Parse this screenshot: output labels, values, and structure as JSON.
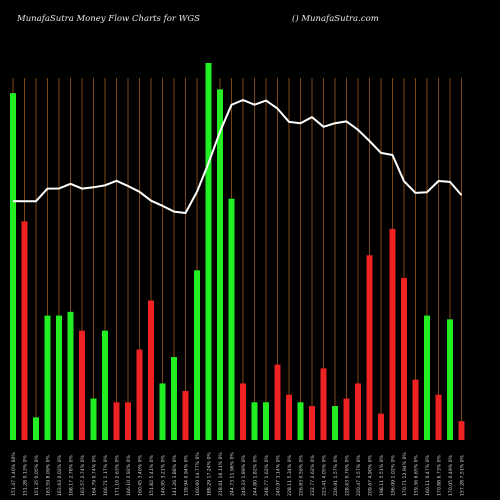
{
  "header": {
    "title": "MunafaSutra  Money Flow  Charts for WGS",
    "credit": "() MunafaSutra.com"
  },
  "colors": {
    "background": "#000000",
    "gridline": "#b5651d",
    "up": "#22ee22",
    "down": "#ee2222",
    "price_line": "#ffffff"
  },
  "chart_data": {
    "type": "bar",
    "title": "MunafaSutra  Money Flow  Charts for WGS",
    "grid": true,
    "categories": [
      "151.47 3.40% 60%",
      "151.28 0.13% 0%",
      "151.35 0.05% 0%",
      "163.59 8.09% 0%",
      "163.63 0.02% 0%",
      "168.17 2.78% 0%",
      "163.57 2.74% 0%",
      "164.79 0.74% 0%",
      "166.71 1.17% 0%",
      "171.10 2.63% 0%",
      "166.10 2.92% 0%",
      "160.45 3.40% 0%",
      "151.82 5.41% 0%",
      "146.95 3.21% 0%",
      "141.26 3.88% 0%",
      "139.94 0.94% 0%",
      "160.60 14.77% 0%",
      "188.29 17.24% 0%",
      "218.61 16.11% 0%",
      "244.73 11.96% 0%",
      "249.33 1.89% 0%",
      "244.80 1.82% 0%",
      "248.77 1.62% 0%",
      "240.97 3.14% 0%",
      "228.11 5.34% 0%",
      "226.83 0.56% 0%",
      "232.77 2.62% 0%",
      "223.41 4.05% 0%",
      "226.91 1.57% 0%",
      "228.63 0.76% 0%",
      "220.47 3.57% 0%",
      "209.67 4.90% 0%",
      "198.11 5.51% 0%",
      "196.09 1.02% 0%",
      "170.71 12.94% 0%",
      "159.36 6.65% 0%",
      "160.11 0.47% 0%",
      "170.88 6.73% 0%",
      "170.05 0.49% 0%",
      "157.28 7.51% 0%"
    ],
    "series": [
      {
        "values": [
          92,
          58,
          6,
          33,
          33,
          34,
          29,
          11,
          29,
          10,
          10,
          24,
          37,
          15,
          22,
          13,
          45,
          100,
          93,
          64,
          15,
          10,
          10,
          20,
          12,
          10,
          9,
          19,
          9,
          11,
          15,
          49,
          7,
          56,
          43,
          16,
          33,
          12,
          32,
          5
        ],
        "directions": [
          "up",
          "down",
          "up",
          "up",
          "up",
          "up",
          "down",
          "up",
          "up",
          "down",
          "down",
          "down",
          "down",
          "up",
          "up",
          "down",
          "up",
          "up",
          "up",
          "up",
          "down",
          "up",
          "up",
          "down",
          "down",
          "up",
          "down",
          "down",
          "up",
          "down",
          "down",
          "down",
          "down",
          "down",
          "down",
          "down",
          "up",
          "down",
          "up",
          "down"
        ]
      },
      {
        "name": "price",
        "values": [
          151.47,
          151.28,
          151.35,
          163.59,
          163.63,
          168.17,
          163.57,
          164.79,
          166.71,
          171.1,
          166.1,
          160.45,
          151.82,
          146.95,
          141.26,
          139.94,
          160.6,
          188.29,
          218.61,
          244.73,
          249.33,
          244.8,
          248.77,
          240.97,
          228.11,
          226.83,
          232.77,
          223.41,
          226.91,
          228.63,
          220.47,
          209.67,
          198.11,
          196.09,
          170.71,
          159.36,
          160.11,
          170.88,
          170.05,
          157.28
        ]
      }
    ]
  }
}
